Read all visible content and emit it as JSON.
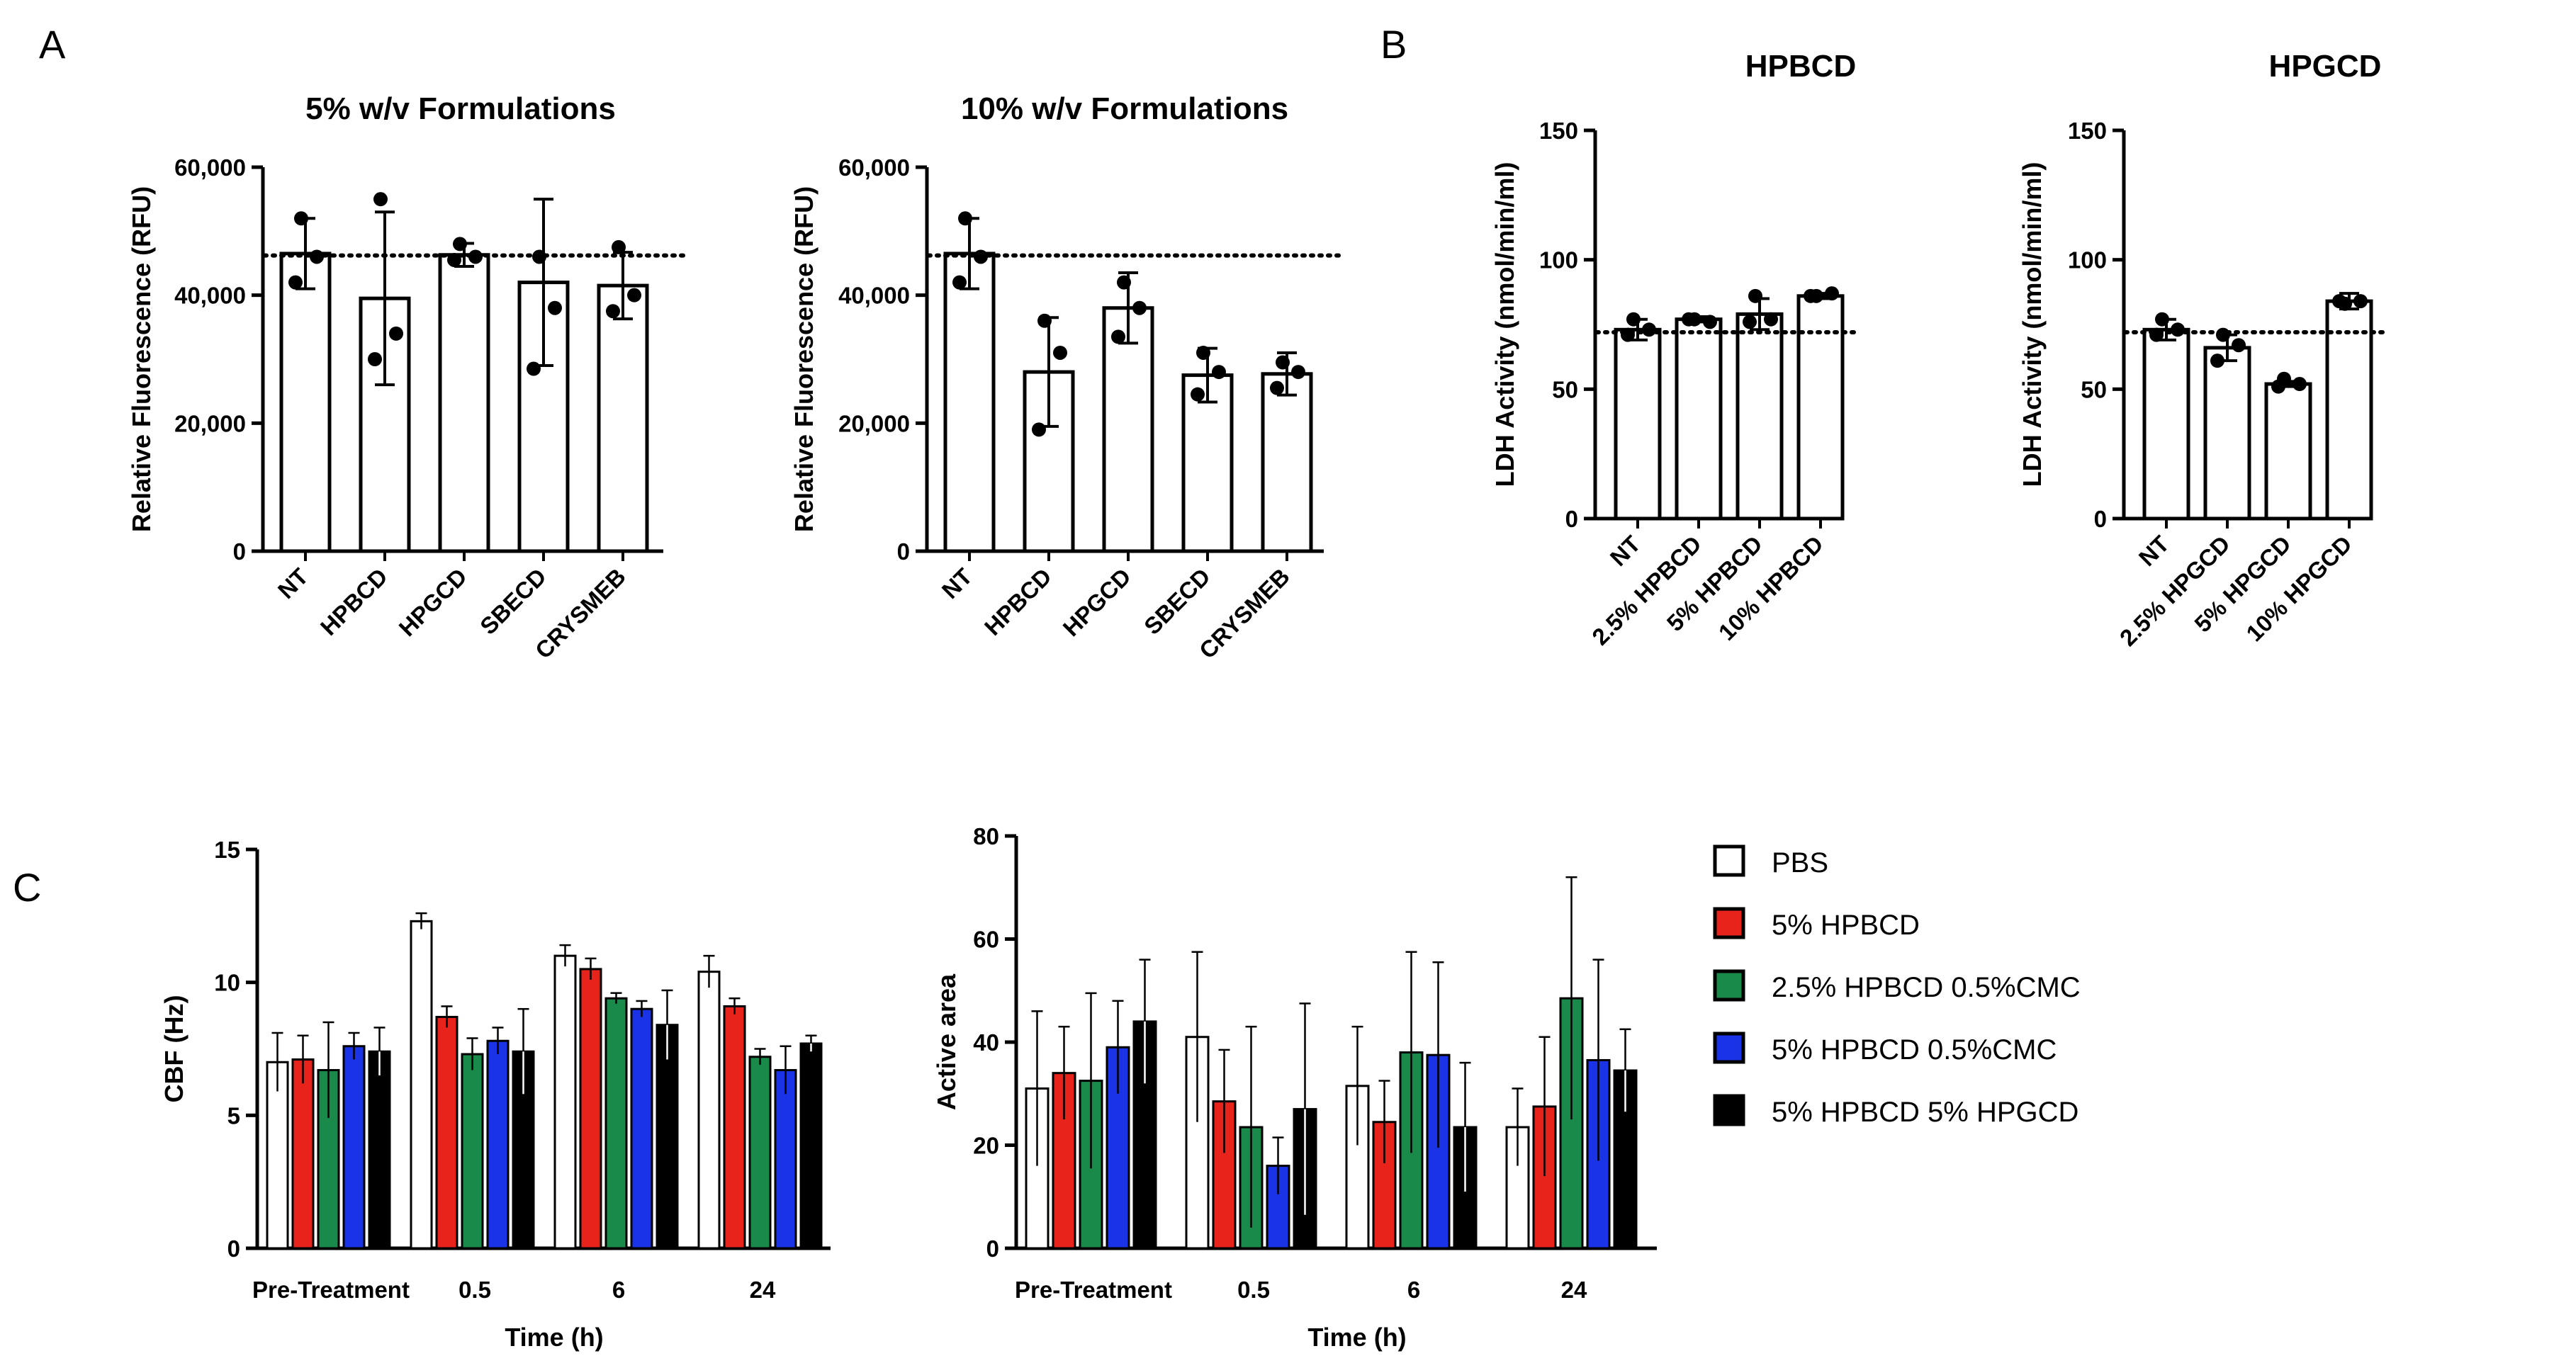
{
  "panel_labels": [
    "A",
    "B",
    "C"
  ],
  "chart_data": [
    {
      "id": "A1",
      "type": "bar",
      "title": "5% w/v Formulations",
      "xlabel": "",
      "ylabel": "Relative Fluorescence (RFU)",
      "ylim": [
        0,
        60000
      ],
      "yticks": [
        0,
        20000,
        40000,
        60000
      ],
      "ytick_labels": [
        "0",
        "20,000",
        "40,000",
        "60,000"
      ],
      "categories": [
        "NT",
        "HPBCD",
        "HPGCD",
        "SBECD",
        "CRYSMEB"
      ],
      "values": [
        46500,
        39500,
        46300,
        42000,
        41500
      ],
      "errors": [
        5500,
        13500,
        1800,
        13000,
        5200
      ],
      "points": [
        [
          52000,
          46000,
          42000
        ],
        [
          55000,
          34000,
          30000
        ],
        [
          48000,
          46000,
          45500
        ],
        [
          46000,
          38000,
          28500
        ],
        [
          47500,
          40000,
          37500
        ]
      ],
      "reference_line": 46200
    },
    {
      "id": "A2",
      "type": "bar",
      "title": "10% w/v Formulations",
      "xlabel": "",
      "ylabel": "Relative Fluorescence (RFU)",
      "ylim": [
        0,
        60000
      ],
      "yticks": [
        0,
        20000,
        40000,
        60000
      ],
      "ytick_labels": [
        "0",
        "20,000",
        "40,000",
        "60,000"
      ],
      "categories": [
        "NT",
        "HPBCD",
        "HPGCD",
        "SBECD",
        "CRYSMEB"
      ],
      "values": [
        46500,
        28000,
        38000,
        27500,
        27700
      ],
      "errors": [
        5500,
        8500,
        5500,
        4200,
        3300
      ],
      "points": [
        [
          52000,
          46000,
          42000
        ],
        [
          36000,
          31000,
          19000
        ],
        [
          42000,
          38000,
          33500
        ],
        [
          31000,
          28000,
          24500
        ],
        [
          29500,
          28000,
          25500
        ]
      ],
      "reference_line": 46200
    },
    {
      "id": "B1",
      "type": "bar",
      "title": "HPBCD",
      "xlabel": "",
      "ylabel": "LDH Activity (nmol/min/ml)",
      "ylim": [
        0,
        150
      ],
      "yticks": [
        0,
        50,
        100,
        150
      ],
      "ytick_labels": [
        "0",
        "50",
        "100",
        "150"
      ],
      "categories": [
        "NT",
        "2.5% HPBCD",
        "5% HPBCD",
        "10% HPBCD"
      ],
      "values": [
        73,
        77,
        79,
        86
      ],
      "errors": [
        4,
        1,
        6,
        1
      ],
      "points": [
        [
          77,
          73,
          71
        ],
        [
          77,
          76,
          77
        ],
        [
          86,
          77,
          76
        ],
        [
          86,
          87,
          86
        ]
      ],
      "reference_line": 72
    },
    {
      "id": "B2",
      "type": "bar",
      "title": "HPGCD",
      "xlabel": "",
      "ylabel": "LDH Activity (nmol/min/ml)",
      "ylim": [
        0,
        150
      ],
      "yticks": [
        0,
        50,
        100,
        150
      ],
      "ytick_labels": [
        "0",
        "50",
        "100",
        "150"
      ],
      "categories": [
        "NT",
        "2.5% HPGCD",
        "5% HPGCD",
        "10% HPGCD"
      ],
      "values": [
        73,
        66,
        52,
        84
      ],
      "errors": [
        4,
        5,
        1,
        3
      ],
      "points": [
        [
          77,
          73,
          71
        ],
        [
          71,
          67,
          61
        ],
        [
          54,
          52,
          51
        ],
        [
          83,
          84,
          84
        ]
      ],
      "reference_line": 72
    },
    {
      "id": "C1",
      "type": "bar",
      "title": "",
      "xlabel": "Time (h)",
      "ylabel": "CBF (Hz)",
      "ylim": [
        0,
        15
      ],
      "yticks": [
        0,
        5,
        10,
        15
      ],
      "ytick_labels": [
        "0",
        "5",
        "10",
        "15"
      ],
      "categories": [
        "Pre-Treatment",
        "0.5",
        "6",
        "24"
      ],
      "series": [
        {
          "name": "PBS",
          "values": [
            7.0,
            12.3,
            11.0,
            10.4
          ],
          "errors": [
            1.1,
            0.3,
            0.4,
            0.6
          ]
        },
        {
          "name": "5% HPBCD",
          "values": [
            7.1,
            8.7,
            10.5,
            9.1
          ],
          "errors": [
            0.9,
            0.4,
            0.4,
            0.3
          ]
        },
        {
          "name": "2.5% HPBCD 0.5%CMC",
          "values": [
            6.7,
            7.3,
            9.4,
            7.2
          ],
          "errors": [
            1.8,
            0.6,
            0.2,
            0.3
          ]
        },
        {
          "name": "5% HPBCD 0.5%CMC",
          "values": [
            7.6,
            7.8,
            9.0,
            6.7
          ],
          "errors": [
            0.5,
            0.5,
            0.3,
            0.9
          ]
        },
        {
          "name": "5% HPBCD 5% HPGCD",
          "values": [
            7.4,
            7.4,
            8.4,
            7.7
          ],
          "errors": [
            0.9,
            1.6,
            1.3,
            0.3
          ]
        }
      ]
    },
    {
      "id": "C2",
      "type": "bar",
      "title": "",
      "xlabel": "Time (h)",
      "ylabel": "Active area",
      "ylim": [
        0,
        80
      ],
      "yticks": [
        0,
        20,
        40,
        60,
        80
      ],
      "ytick_labels": [
        "0",
        "20",
        "40",
        "60",
        "80"
      ],
      "categories": [
        "Pre-Treatment",
        "0.5",
        "6",
        "24"
      ],
      "series": [
        {
          "name": "PBS",
          "values": [
            31,
            41,
            31.5,
            23.5
          ],
          "errors": [
            15,
            16.5,
            11.5,
            7.5
          ]
        },
        {
          "name": "5% HPBCD",
          "values": [
            34,
            28.5,
            24.5,
            27.5
          ],
          "errors": [
            9,
            10,
            8,
            13.5
          ]
        },
        {
          "name": "2.5% HPBCD 0.5%CMC",
          "values": [
            32.5,
            23.5,
            38,
            48.5
          ],
          "errors": [
            17,
            19.5,
            19.5,
            23.5
          ]
        },
        {
          "name": "5% HPBCD 0.5%CMC",
          "values": [
            39,
            16,
            37.5,
            36.5
          ],
          "errors": [
            9,
            5.5,
            18,
            19.5
          ]
        },
        {
          "name": "5% HPBCD 5% HPGCD",
          "values": [
            44,
            27,
            23.5,
            34.5
          ],
          "errors": [
            12,
            20.5,
            12.5,
            8
          ]
        }
      ]
    }
  ],
  "legend": {
    "entries": [
      "PBS",
      "5% HPBCD",
      "2.5% HPBCD 0.5%CMC",
      "5% HPBCD 0.5%CMC",
      "5% HPBCD 5% HPGCD"
    ],
    "colors": [
      "#ffffff",
      "#e8231b",
      "#1a8a4a",
      "#1a33e6",
      "#000000"
    ]
  }
}
